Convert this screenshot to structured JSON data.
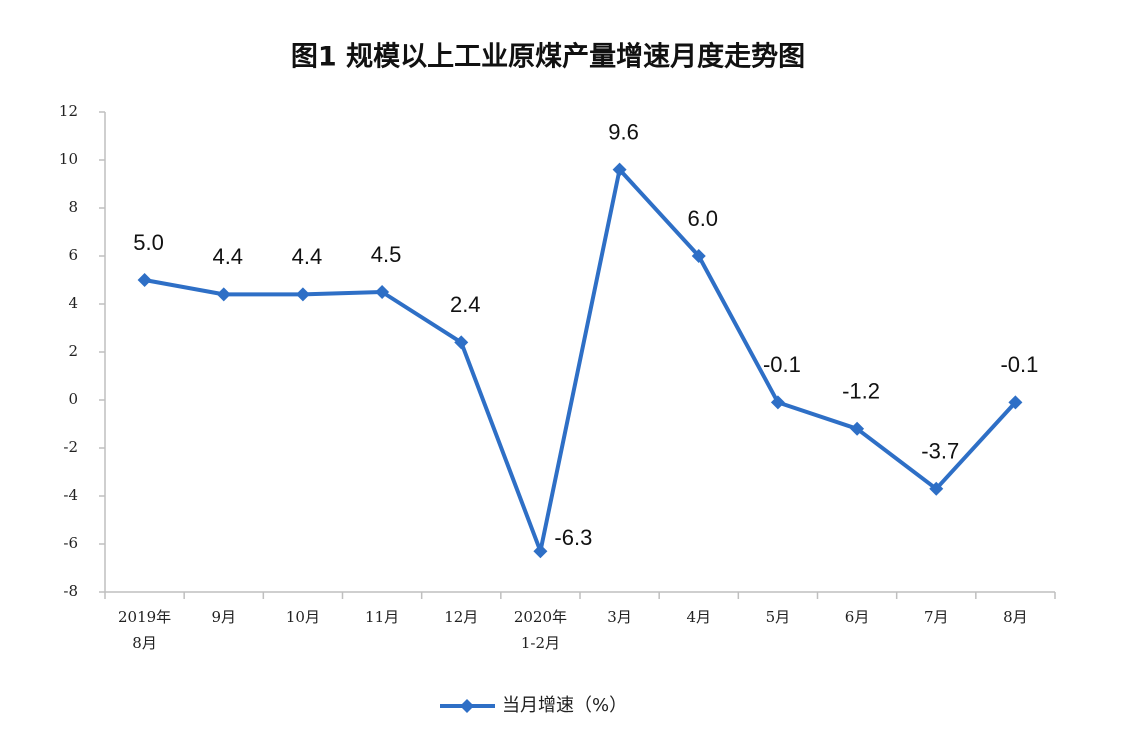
{
  "chart_data": {
    "type": "line",
    "title": "图1  规模以上工业原煤产量增速月度走势图",
    "categories": [
      [
        "2019年",
        "8月"
      ],
      [
        "9月"
      ],
      [
        "10月"
      ],
      [
        "11月"
      ],
      [
        "12月"
      ],
      [
        "2020年",
        "1-2月"
      ],
      [
        "3月"
      ],
      [
        "4月"
      ],
      [
        "5月"
      ],
      [
        "6月"
      ],
      [
        "7月"
      ],
      [
        "8月"
      ]
    ],
    "series": [
      {
        "name": "当月增速（%）",
        "color": "#2e6fc6",
        "values": [
          5.0,
          4.4,
          4.4,
          4.5,
          2.4,
          -6.3,
          9.6,
          6.0,
          -0.1,
          -1.2,
          -3.7,
          -0.1
        ],
        "value_labels": [
          "5.0",
          "4.4",
          "4.4",
          "4.5",
          "2.4",
          "-6.3",
          "9.6",
          "6.0",
          "-0.1",
          "-1.2",
          "-3.7",
          "-0.1"
        ]
      }
    ],
    "ylim": [
      -8,
      12
    ],
    "yticks": [
      -8,
      -6,
      -4,
      -2,
      0,
      2,
      4,
      6,
      8,
      10,
      12
    ],
    "grid": false,
    "legend": "bottom"
  }
}
